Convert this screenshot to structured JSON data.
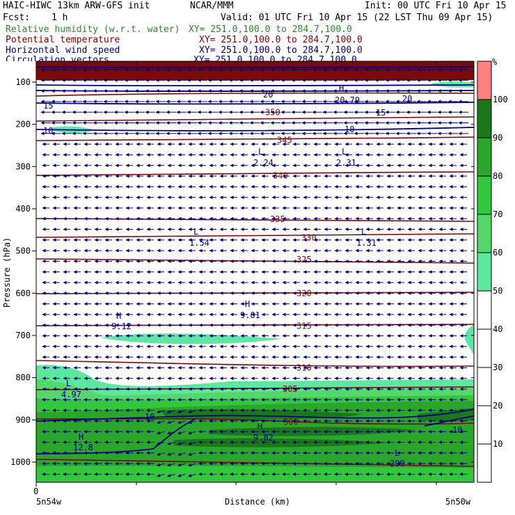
{
  "header": {
    "model": "HAIC-HIWC 13km ARW-GFS init",
    "org": "NCAR/MMM",
    "init": "Init: 00 UTC Fri 10 Apr 15",
    "fcst_label": "Fcst:",
    "fcst_value": "1 h",
    "valid": "Valid: 01 UTC Fri 10 Apr 15 (22 LST Thu 09 Apr 15)",
    "fields": [
      {
        "name": "Relative humidity (w.r.t. water)",
        "xy": "XY= 251.0,100.0 to 284.7,100.0",
        "color": "#2e8b2e"
      },
      {
        "name": "Potential temperature",
        "xy": "XY= 251.0,100.0 to 284.7,100.0",
        "color": "#8b0000"
      },
      {
        "name": "Horizontal wind speed",
        "xy": "XY= 251.0,100.0 to 284.7,100.0",
        "color": "#000080"
      },
      {
        "name": "Circulation vectors",
        "xy": "XY= 251.0,100.0 to 284.7,100.0",
        "color": "#000080"
      }
    ]
  },
  "chart_data": {
    "type": "heatmap",
    "ylabel": "Pressure (hPa)",
    "xlabel": "Distance (km)",
    "y_ticks": [
      100,
      200,
      300,
      400,
      500,
      600,
      700,
      800,
      900,
      1000
    ],
    "ylim": [
      1050,
      60
    ],
    "x_zero_label": "0",
    "x_left_label": "5n54w",
    "x_right_label": "5n50w",
    "colorbar": {
      "unit": "%",
      "ticks": [
        10,
        20,
        30,
        40,
        50,
        60,
        70,
        80,
        90,
        100
      ],
      "levels": [
        {
          "from": 0,
          "to": 50,
          "color": "#ffffff"
        },
        {
          "from": 50,
          "to": 60,
          "color": "#5de8a0"
        },
        {
          "from": 60,
          "to": 70,
          "color": "#55d86a"
        },
        {
          "from": 70,
          "to": 80,
          "color": "#33c83c"
        },
        {
          "from": 80,
          "to": 90,
          "color": "#2aa62a"
        },
        {
          "from": 90,
          "to": 100,
          "color": "#1a781a"
        },
        {
          "from": 100,
          "to": 110,
          "color": "#ff8080"
        }
      ]
    },
    "theta_isentropes_K": [
      {
        "value": "350",
        "p": 172
      },
      {
        "value": "345",
        "p": 238
      },
      {
        "value": "340",
        "p": 322
      },
      {
        "value": "335",
        "p": 425
      },
      {
        "value": "330",
        "p": 468
      },
      {
        "value": "325",
        "p": 520
      },
      {
        "value": "320",
        "p": 600
      },
      {
        "value": "315",
        "p": 678
      },
      {
        "value": "310",
        "p": 777
      },
      {
        "value": "305",
        "p": 827
      },
      {
        "value": "300",
        "p": 905
      },
      {
        "value": "299",
        "p": 1012
      }
    ],
    "wind_speed_labels": [
      "15",
      "20",
      "10",
      "15",
      "20",
      "10",
      "10",
      "10"
    ],
    "extrema": [
      {
        "type": "L",
        "value": "2.24"
      },
      {
        "type": "L",
        "value": "2.31"
      },
      {
        "type": "L",
        "value": "1.54"
      },
      {
        "type": "L",
        "value": "1.31"
      },
      {
        "type": "H",
        "value": "9.12"
      },
      {
        "type": "H",
        "value": "9.01"
      },
      {
        "type": "L",
        "value": "4.97"
      },
      {
        "type": "H",
        "value": "9.82"
      },
      {
        "type": "H",
        "value": "12.8"
      },
      {
        "type": "H",
        "value": "20.79"
      },
      {
        "type": "L",
        "value": "299"
      }
    ]
  }
}
